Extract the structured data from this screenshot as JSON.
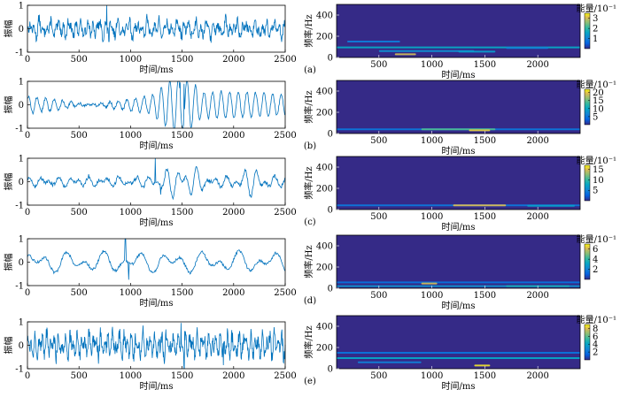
{
  "chart_data": [
    {
      "id": "a",
      "type": "line",
      "title": "",
      "xlabel": "时间/ms",
      "ylabel": "振幅",
      "xlim": [
        0,
        2500
      ],
      "ylim": [
        -1,
        1
      ],
      "xticks": [
        0,
        500,
        1000,
        1500,
        2000,
        2500
      ],
      "yticks": [
        -1,
        0,
        1
      ],
      "color": "#0072BD",
      "signal": {
        "n": 650,
        "base_amp": 0.3,
        "freqs": [
          0.55,
          0.9,
          1.3
        ],
        "noise": 0.2,
        "spikes": [
          [
            770,
            1.0
          ],
          [
            790,
            -0.55
          ]
        ],
        "bursts": []
      }
    },
    {
      "id": "b",
      "type": "line",
      "xlabel": "时间/ms",
      "ylabel": "振幅",
      "xlim": [
        0,
        2500
      ],
      "ylim": [
        -1,
        1
      ],
      "xticks": [
        0,
        500,
        1000,
        1500,
        2000,
        2500
      ],
      "yticks": [
        -1,
        0,
        1
      ],
      "color": "#0072BD",
      "signal": {
        "n": 520,
        "base_amp": 0.35,
        "freqs": [
          0.62,
          0.64
        ],
        "noise": 0.06,
        "spikes": [
          [
            1480,
            0.95
          ],
          [
            1500,
            -0.95
          ],
          [
            1520,
            0.9
          ]
        ],
        "bursts": [
          [
            1200,
            1700,
            0.5
          ]
        ]
      }
    },
    {
      "id": "c",
      "type": "line",
      "xlabel": "时间/ms",
      "ylabel": "振幅",
      "xlim": [
        0,
        2500
      ],
      "ylim": [
        -1,
        1
      ],
      "xticks": [
        0,
        500,
        1000,
        1500,
        2000,
        2500
      ],
      "yticks": [
        -1,
        0,
        1
      ],
      "color": "#0072BD",
      "signal": {
        "n": 480,
        "base_amp": 0.15,
        "freqs": [
          0.55,
          0.35
        ],
        "noise": 0.08,
        "spikes": [
          [
            1240,
            1.0
          ],
          [
            1290,
            -0.55
          ]
        ],
        "bursts": [
          [
            1250,
            1750,
            0.35
          ],
          [
            1950,
            2400,
            0.25
          ]
        ]
      }
    },
    {
      "id": "d",
      "type": "line",
      "xlabel": "时间/ms",
      "ylabel": "振幅",
      "xlim": [
        0,
        2500
      ],
      "ylim": [
        -1,
        1
      ],
      "xticks": [
        0,
        500,
        1000,
        1500,
        2000,
        2500
      ],
      "yticks": [
        -1,
        0,
        1
      ],
      "color": "#0072BD",
      "signal": {
        "n": 420,
        "base_amp": 0.3,
        "freqs": [
          0.16,
          0.28
        ],
        "noise": 0.06,
        "spikes": [
          [
            950,
            1.0
          ],
          [
            980,
            -0.75
          ]
        ],
        "bursts": []
      }
    },
    {
      "id": "e",
      "type": "line",
      "xlabel": "时间/ms",
      "ylabel": "振幅",
      "xlim": [
        0,
        2500
      ],
      "ylim": [
        -1,
        1
      ],
      "xticks": [
        0,
        500,
        1000,
        1500,
        2000,
        2500
      ],
      "yticks": [
        -1,
        0,
        1
      ],
      "color": "#0072BD",
      "signal": {
        "n": 700,
        "base_amp": 0.35,
        "freqs": [
          0.9,
          1.4
        ],
        "noise": 0.3,
        "spikes": [
          [
            1490,
            0.95
          ],
          [
            1520,
            -1.0
          ],
          [
            1900,
            -0.85
          ]
        ],
        "bursts": []
      }
    },
    {
      "id": "a",
      "type": "heatmap",
      "panel_label": "(a)",
      "xlabel": "时间/ms",
      "ylabel": "频率/Hz",
      "xlim": [
        100,
        2400
      ],
      "ylim": [
        0,
        500
      ],
      "xticks": [
        500,
        1000,
        1500,
        2000
      ],
      "yticks": [
        0,
        200,
        400
      ],
      "colorbar": {
        "label": "能量/10⁻¹",
        "range": [
          0,
          3.5
        ],
        "ticks": [
          1,
          2,
          3
        ]
      },
      "features": [
        {
          "t0": 100,
          "t1": 2400,
          "f": 95,
          "energy": 1.6
        },
        {
          "t0": 200,
          "t1": 700,
          "f": 150,
          "energy": 0.9
        },
        {
          "t0": 500,
          "t1": 1400,
          "f": 60,
          "energy": 1.2
        },
        {
          "t0": 650,
          "t1": 850,
          "f": 30,
          "energy": 3.0
        },
        {
          "t0": 1250,
          "t1": 1600,
          "f": 55,
          "energy": 1.4
        },
        {
          "t0": 1700,
          "t1": 2100,
          "f": 90,
          "energy": 1.0
        }
      ]
    },
    {
      "id": "b",
      "type": "heatmap",
      "panel_label": "(b)",
      "xlabel": "时间/ms",
      "ylabel": "频率/Hz",
      "xlim": [
        100,
        2400
      ],
      "ylim": [
        0,
        500
      ],
      "xticks": [
        500,
        1000,
        1500,
        2000
      ],
      "yticks": [
        0,
        200,
        400
      ],
      "colorbar": {
        "label": "能量/10⁻¹",
        "range": [
          0,
          22
        ],
        "ticks": [
          5,
          10,
          15,
          20
        ]
      },
      "features": [
        {
          "t0": 100,
          "t1": 2400,
          "f": 40,
          "energy": 5.0
        },
        {
          "t0": 900,
          "t1": 1600,
          "f": 40,
          "energy": 14.0
        },
        {
          "t0": 1350,
          "t1": 1550,
          "f": 30,
          "energy": 20.0
        }
      ]
    },
    {
      "id": "c",
      "type": "heatmap",
      "panel_label": "(c)",
      "xlabel": "时间/ms",
      "ylabel": "频率/Hz",
      "xlim": [
        100,
        2400
      ],
      "ylim": [
        0,
        500
      ],
      "xticks": [
        500,
        1000,
        1500,
        2000
      ],
      "yticks": [
        0,
        200,
        400
      ],
      "colorbar": {
        "label": "能量/10⁻¹",
        "range": [
          0,
          17
        ],
        "ticks": [
          5,
          10,
          15
        ]
      },
      "features": [
        {
          "t0": 100,
          "t1": 2400,
          "f": 40,
          "energy": 4.0
        },
        {
          "t0": 1200,
          "t1": 1700,
          "f": 40,
          "energy": 15.0
        },
        {
          "t0": 1900,
          "t1": 2350,
          "f": 35,
          "energy": 7.0
        }
      ]
    },
    {
      "id": "d",
      "type": "heatmap",
      "panel_label": "(d)",
      "xlabel": "时间/ms",
      "ylabel": "频率/Hz",
      "xlim": [
        100,
        2400
      ],
      "ylim": [
        0,
        500
      ],
      "xticks": [
        500,
        1000,
        1500,
        2000
      ],
      "yticks": [
        0,
        200,
        400
      ],
      "colorbar": {
        "label": "能量/10⁻¹",
        "range": [
          0,
          7
        ],
        "ticks": [
          2,
          4,
          6
        ]
      },
      "features": [
        {
          "t0": 100,
          "t1": 2400,
          "f": 20,
          "energy": 2.5
        },
        {
          "t0": 100,
          "t1": 2400,
          "f": 55,
          "energy": 1.5
        },
        {
          "t0": 900,
          "t1": 1050,
          "f": 45,
          "energy": 6.0
        },
        {
          "t0": 1700,
          "t1": 2300,
          "f": 20,
          "energy": 3.5
        }
      ]
    },
    {
      "id": "e",
      "type": "heatmap",
      "panel_label": "(e)",
      "xlabel": "时间/ms",
      "ylabel": "频率/Hz",
      "xlim": [
        100,
        2400
      ],
      "ylim": [
        0,
        500
      ],
      "xticks": [
        500,
        1000,
        1500,
        2000
      ],
      "yticks": [
        0,
        200,
        400
      ],
      "colorbar": {
        "label": "能量/10⁻¹",
        "range": [
          0,
          9
        ],
        "ticks": [
          2,
          4,
          6,
          8
        ]
      },
      "features": [
        {
          "t0": 100,
          "t1": 2400,
          "f": 100,
          "energy": 4.0
        },
        {
          "t0": 100,
          "t1": 2400,
          "f": 150,
          "energy": 2.0
        },
        {
          "t0": 300,
          "t1": 900,
          "f": 60,
          "energy": 2.5
        },
        {
          "t0": 1400,
          "t1": 1550,
          "f": 30,
          "energy": 8.5
        }
      ]
    }
  ]
}
